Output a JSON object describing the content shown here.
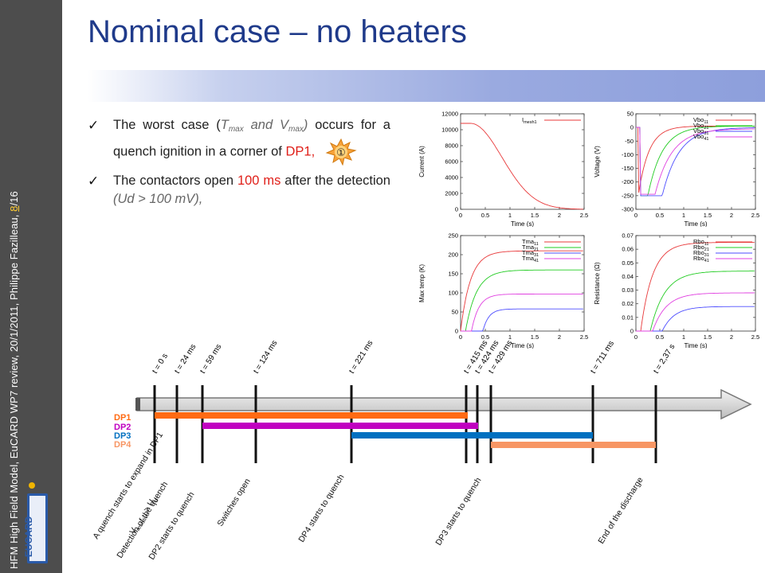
{
  "sidebar": {
    "text_main": "HFM High Field Model, EuCARD WP7 review, 20/1/2011, Philippe Fazilleau,",
    "page_current": "8",
    "page_total": "/16",
    "logo_text": "EUCARD"
  },
  "title": "Nominal case – no heaters",
  "bullets": {
    "b1_p1": "The worst case (",
    "b1_tmax": "T",
    "b1_tmax_sub": "max",
    "b1_and": " and ",
    "b1_vmax": "V",
    "b1_vmax_sub": "max",
    "b1_close": ")",
    "b1_p2": " occurs for a quench ignition in a corner of ",
    "b1_dp1": "DP1,",
    "sun_symbol": "①",
    "b2_p1": "The contactors open ",
    "b2_ms": "100 ms",
    "b2_p2": " after the detection ",
    "b2_cond": "(Ud > 100 mV),"
  },
  "plots": {
    "current": {
      "ylabel": "Current (A)",
      "xlabel": "Time (s)",
      "yticks": [
        "0",
        "2000",
        "4000",
        "6000",
        "8000",
        "10000",
        "12000"
      ],
      "xticks": [
        "0",
        "0.5",
        "1",
        "1.5",
        "2",
        "2.5"
      ],
      "legend": "I",
      "legend_sub": "mesh1"
    },
    "voltage": {
      "ylabel": "Voltage (V)",
      "xlabel": "Time (s)",
      "yticks": [
        "-300",
        "-250",
        "-200",
        "-150",
        "-100",
        "-50",
        "0",
        "50"
      ],
      "xticks": [
        "0",
        "0.5",
        "1",
        "1.5",
        "2",
        "2.5"
      ],
      "legend": [
        {
          "t": "Vbo",
          "s": "11"
        },
        {
          "t": "Vbo",
          "s": "21"
        },
        {
          "t": "Vbo",
          "s": "31"
        },
        {
          "t": "Vbo",
          "s": "41"
        }
      ]
    },
    "temp": {
      "ylabel": "Max temp (K)",
      "xlabel": "Time (s)",
      "yticks": [
        "0",
        "50",
        "100",
        "150",
        "200",
        "250"
      ],
      "xticks": [
        "0",
        "0.5",
        "1",
        "1.5",
        "2",
        "2.5"
      ],
      "legend": [
        {
          "t": "Tma",
          "s": "11"
        },
        {
          "t": "Tma",
          "s": "21"
        },
        {
          "t": "Tma",
          "s": "31"
        },
        {
          "t": "Tma",
          "s": "41"
        }
      ]
    },
    "resistance": {
      "ylabel": "Resistance (Ω)",
      "xlabel": "Time (s)",
      "yticks": [
        "0",
        "0.01",
        "0.02",
        "0.03",
        "0.04",
        "0.05",
        "0.06",
        "0.07"
      ],
      "xticks": [
        "0",
        "0.5",
        "1",
        "1.5",
        "2",
        "2.5"
      ],
      "legend": [
        {
          "t": "Rbo",
          "s": "11"
        },
        {
          "t": "Rbo",
          "s": "21"
        },
        {
          "t": "Rbo",
          "s": "31"
        },
        {
          "t": "Rbo",
          "s": "41"
        }
      ]
    }
  },
  "timeline": {
    "times": [
      "t = 0 s",
      "t = 24 ms",
      "t = 59 ms",
      "t = 124 ms",
      "t = 221 ms",
      "t = 415 ms",
      "t = 424 ms",
      "t = 429 ms",
      "t = 711 ms",
      "t = 2,37 s"
    ],
    "dp_labels": [
      "DP1",
      "DP2",
      "DP3",
      "DP4"
    ],
    "events": [
      "A quench starts to expand in DP1",
      "V",
      "resistive",
      "> U",
      "d",
      "Detection of the quench",
      "DP2 starts to quench",
      "Switches open",
      "DP4 starts to quench",
      "DP3 starts to quench",
      "End of the discharge"
    ]
  },
  "colors": {
    "title": "#1f3a8a",
    "red": "#e0201a",
    "dp1": "#ff6a13",
    "dp2": "#c000c0",
    "dp3": "#0070c0",
    "dp4": "#f79664",
    "s11": "#e8393a",
    "s21": "#22cc22",
    "s31": "#4d4dff",
    "s41": "#e040e0"
  }
}
